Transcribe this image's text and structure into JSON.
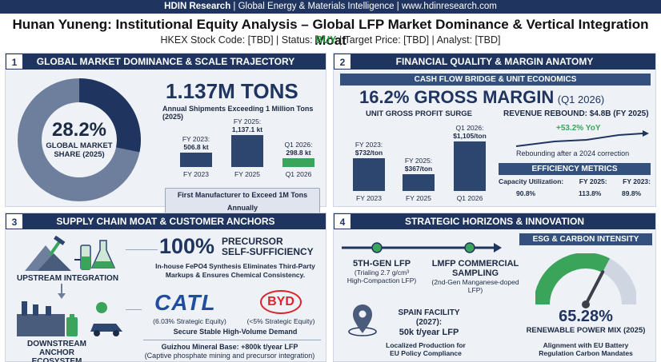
{
  "header": {
    "brand": "HDIN Research",
    "top_rest": " | Global Energy & Materials Intelligence | www.hdinresearch.com",
    "title": "Hunan Yuneng: Institutional Equity Analysis – Global LFP Market Dominance & Vertical Integration Moat",
    "subtitle_pre": "HKEX Stock Code: [TBD] | Status: ",
    "status": "BUY",
    "subtitle_post": " | Target Price: [TBD] | Analyst: [TBD]"
  },
  "panel1": {
    "num": "1",
    "title": "GLOBAL MARKET DOMINANCE & SCALE TRAJECTORY",
    "donut_value": "28.2%",
    "donut_label_1": "GLOBAL MARKET",
    "donut_label_2": "SHARE (2025)",
    "donut_fraction": 0.282,
    "headline": "1.137M TONS",
    "headline_sub": "Annual Shipments Exceeding 1 Million Tons (2025)",
    "bars": [
      {
        "label_1": "FY 2023:",
        "label_2": "506.8 kt",
        "cat": "FY 2023",
        "value": 506.8
      },
      {
        "label_1": "FY 2025:",
        "label_2": "1,137.1 kt",
        "cat": "FY 2025",
        "value": 1137.1
      },
      {
        "label_1": "Q1 2026:",
        "label_2": "298.8 kt",
        "cat": "Q1 2026",
        "value": 298.8
      }
    ],
    "badge": "First Manufacturer to Exceed 1M Tons Annually"
  },
  "panel2": {
    "num": "2",
    "title": "FINANCIAL QUALITY & MARGIN ANATOMY",
    "strip": "CASH FLOW BRIDGE & UNIT ECONOMICS",
    "headline": "16.2% GROSS MARGIN",
    "headline_suffix": "(Q1 2026)",
    "unit_title": "UNIT GROSS PROFIT SURGE",
    "bars": [
      {
        "label_1": "FY 2023:",
        "label_2": "$732/ton",
        "cat": "FY 2023",
        "value": 732
      },
      {
        "label_1": "FY 2025:",
        "label_2": "$367/ton",
        "cat": "FY 2025",
        "value": 367
      },
      {
        "label_1": "Q1 2026:",
        "label_2": "$1,105/ton",
        "cat": "Q1 2026",
        "value": 1105
      }
    ],
    "rev_title": "REVENUE REBOUND: $4.8B (FY 2025)",
    "rev_yoy": "+53.2% YoY",
    "rev_note": "Rebounding after a 2024 correction",
    "eff_title": "EFFICIENCY METRICS",
    "eff_headers": [
      "Capacity Utilization:",
      "FY 2025:",
      "FY 2023:"
    ],
    "eff_values": [
      "90.8%",
      "113.8%",
      "89.8%"
    ]
  },
  "panel3": {
    "num": "3",
    "title": "SUPPLY CHAIN MOAT & CUSTOMER ANCHORS",
    "upstream": "UPSTREAM INTEGRATION",
    "downstream_1": "DOWNSTREAM",
    "downstream_2": "ANCHOR ECOSYSTEM",
    "pct": "100%",
    "pct_label_1": "PRECURSOR",
    "pct_label_2": "SELF-SUFFICIENCY",
    "pct_desc_1": "In-house FePO4 Synthesis Eliminates Third-Party",
    "pct_desc_2": "Markups & Ensures Chemical Consistency.",
    "catl": "CATL",
    "catl_equity": "(6.03% Strategic Equity)",
    "byd": "BYD",
    "byd_equity": "(<5% Strategic Equity)",
    "demand": "Secure Stable High-Volume Demand",
    "guizhou_1": "Guizhou Mineral Base: +800k t/year LFP",
    "guizhou_2": "(Captive phosphate mining and precursor integration)"
  },
  "panel4": {
    "num": "4",
    "title": "STRATEGIC HORIZONS & INNOVATION",
    "esg_title": "ESG & CARBON INTENSITY",
    "m1_title": "5TH-GEN LFP",
    "m1_d1": "(Trialing 2.7 g/cm³",
    "m1_d2": "High-Compaction LFP)",
    "m2_title_1": "LMFP COMMERCIAL",
    "m2_title_2": "SAMPLING",
    "m2_d1": "(2nd-Gen Manganese-doped",
    "m2_d2": "LFP)",
    "spain_1": "SPAIN FACILITY (2027):",
    "spain_2": "50k t/year LFP",
    "spain_d1": "Localized Production for",
    "spain_d2": "EU Policy Compliance",
    "renew_pct": "65.28%",
    "renew_fraction": 0.6528,
    "renew_label": "RENEWABLE POWER MIX (2025)",
    "eu_1": "Alignment with EU Battery",
    "eu_2": "Regulation Carbon Mandates"
  },
  "colors": {
    "navy": "#1f3560",
    "green": "#3aa55a",
    "buy": "#1e9e3a"
  }
}
